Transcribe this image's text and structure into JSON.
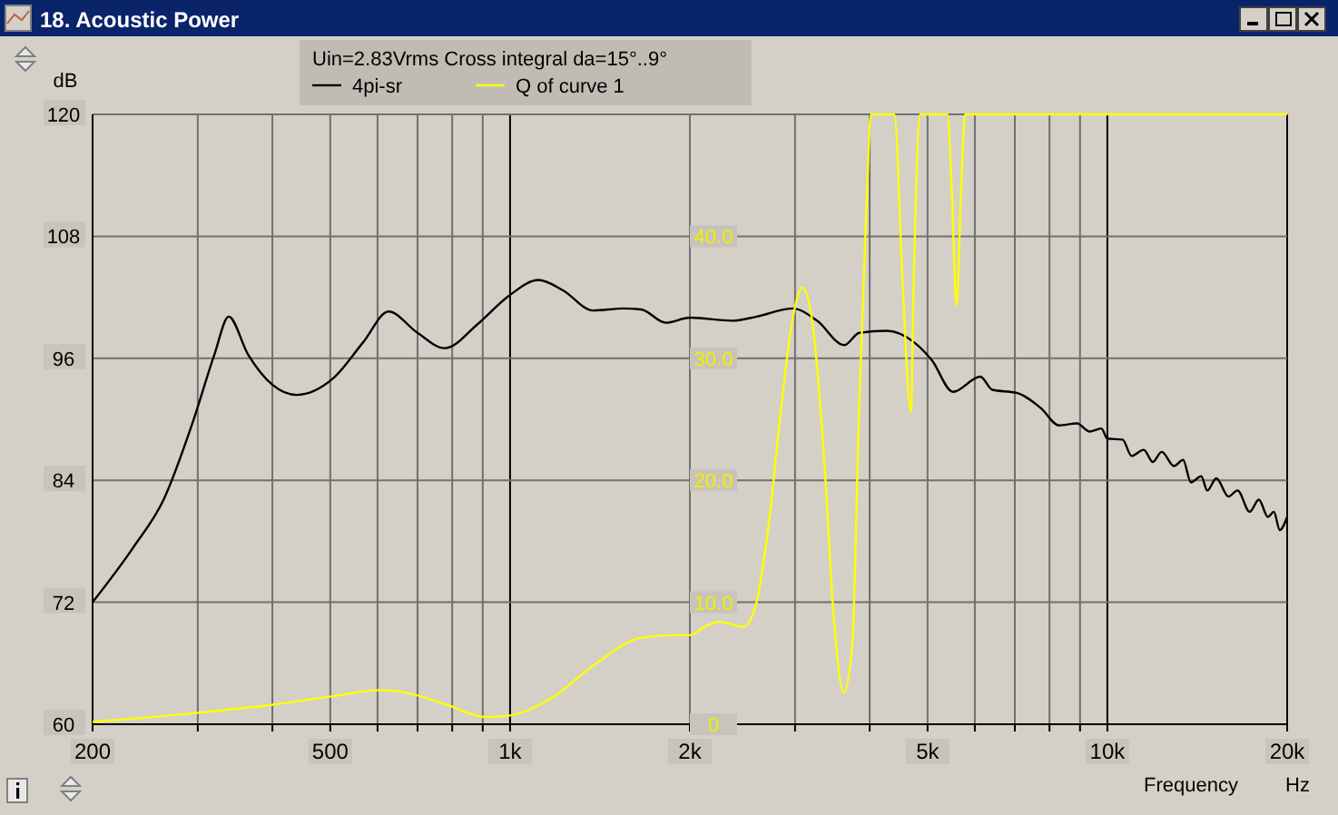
{
  "chart_data": {
    "type": "line",
    "title": "18. Acoustic Power",
    "legend_title": "Uin=2.83Vrms Cross integral da=15°..9°",
    "xlabel": "Frequency",
    "ylabel": "dB",
    "annotations": [
      "Hz"
    ],
    "log": "x",
    "grid": true,
    "legend": "top",
    "xlim": [
      200,
      20000
    ],
    "ylim": [
      60,
      120
    ],
    "y2lim": [
      0,
      50
    ],
    "xticks": [
      200,
      {
        "value": 300,
        "label": null
      },
      {
        "value": 400,
        "label": null
      },
      500,
      {
        "value": 600,
        "label": null
      },
      {
        "value": 700,
        "label": null
      },
      {
        "value": 800,
        "label": null
      },
      {
        "value": 900,
        "label": null
      },
      {
        "value": 1000,
        "label": "1k"
      },
      {
        "value": 2000,
        "label": "2k"
      },
      {
        "value": 3000,
        "label": null
      },
      {
        "value": 4000,
        "label": null
      },
      {
        "value": 5000,
        "label": "5k"
      },
      {
        "value": 6000,
        "label": null
      },
      {
        "value": 7000,
        "label": null
      },
      {
        "value": 8000,
        "label": null
      },
      {
        "value": 9000,
        "label": null
      },
      {
        "value": 10000,
        "label": "10k"
      },
      {
        "value": 20000,
        "label": "20k"
      }
    ],
    "yticks": [
      60,
      72,
      84,
      96,
      108,
      120
    ],
    "y2ticks": [
      0,
      {
        "value": 10,
        "label": "10.0"
      },
      {
        "value": 20,
        "label": "20.0"
      },
      {
        "value": 30,
        "label": "30.0"
      },
      {
        "value": 40,
        "label": "40.0"
      }
    ],
    "series": [
      {
        "name": "4pi-sr",
        "color": "#000000",
        "x": [
          200,
          234,
          263,
          295,
          320,
          338,
          364,
          400,
          439,
          505,
          568,
          626,
          700,
          777,
          884,
          993,
          1116,
          1225,
          1377,
          1547,
          1659,
          1822,
          2000,
          2354,
          2586,
          2974,
          3265,
          3627,
          3843,
          4270,
          4741,
          5085,
          5516,
          6127,
          6422,
          7050,
          7738,
          8297,
          8898,
          9326,
          9772,
          10000,
          10603,
          10980,
          11505,
          11914,
          12330,
          12930,
          13390,
          13800,
          14360,
          14700,
          15220,
          15950,
          16520,
          17310,
          17930,
          18570,
          19000,
          19440,
          20000
        ],
        "values": [
          72,
          77.4,
          82.1,
          89.9,
          96.4,
          100.1,
          96.4,
          93.4,
          92.4,
          94,
          97.6,
          100.6,
          98.5,
          97,
          99.4,
          102.1,
          103.7,
          102.7,
          100.7,
          100.9,
          100.8,
          99.5,
          100,
          99.7,
          100.1,
          100.9,
          99.7,
          97.3,
          98.5,
          98.7,
          97.6,
          95.8,
          92.7,
          94.2,
          92.9,
          92.6,
          91.1,
          89.4,
          89.6,
          88.8,
          89.1,
          88.1,
          88,
          86.4,
          87,
          85.8,
          86.8,
          85.4,
          86,
          83.8,
          84.4,
          83,
          84.2,
          82.4,
          83,
          80.9,
          82.1,
          80.4,
          80.9,
          79.1,
          80.4
        ]
      },
      {
        "name": "Q of curve 1",
        "color": "#ffff00",
        "axis": "y2",
        "x": [
          200,
          295,
          400,
          505,
          609,
          682,
          784,
          907,
          993,
          1170,
          1377,
          1659,
          1870,
          2000,
          2120,
          2240,
          2460,
          2586,
          2712,
          2850,
          2974,
          3085,
          3200,
          3360,
          3480,
          3620,
          3740,
          3843,
          3960,
          4020,
          4400,
          4540,
          4690,
          4740,
          4860,
          5400,
          5490,
          5590,
          5690,
          5780,
          20000
        ],
        "values": [
          0.2,
          0.9,
          1.6,
          2.3,
          2.8,
          2.5,
          1.6,
          0.6,
          0.7,
          2.1,
          4.8,
          7.1,
          7.3,
          7.3,
          8,
          8.4,
          8,
          10,
          16.5,
          26.4,
          33.3,
          35.8,
          33.3,
          21.4,
          9,
          2.6,
          6.5,
          26.4,
          43.8,
          50,
          50,
          36.3,
          25.6,
          36.3,
          50,
          50,
          43.8,
          34.3,
          43.8,
          50,
          50
        ]
      }
    ]
  }
}
